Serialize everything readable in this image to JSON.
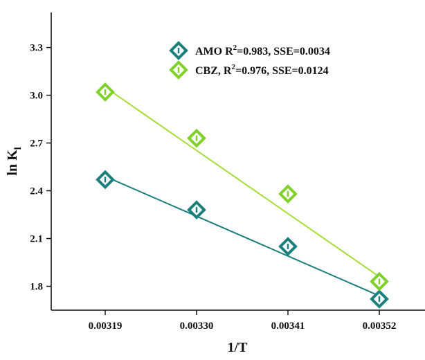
{
  "chart_data": {
    "type": "scatter",
    "xlabel": "1/T",
    "ylabel": {
      "main": "ln K",
      "sub": "l"
    },
    "xlim": [
      0.003125,
      0.003575
    ],
    "ylim": [
      1.65,
      3.52
    ],
    "x_ticks": [
      0.00319,
      0.0033,
      0.00341,
      0.00352
    ],
    "x_tick_labels": [
      "0.00319",
      "0.00330",
      "0.00341",
      "0.00352"
    ],
    "y_ticks": [
      1.8,
      2.1,
      2.4,
      2.7,
      3.0,
      3.3
    ],
    "y_tick_labels": [
      "1.8",
      "2.1",
      "2.4",
      "2.7",
      "3.0",
      "3.3"
    ],
    "grid": false,
    "legend_position": "top-right",
    "series": [
      {
        "name": "AMO",
        "legend_label": {
          "name": "AMO",
          "r2_prefix": "R",
          "r2_sup": "2",
          "rest": "=0.983, SSE=0.0034"
        },
        "color": "#1b7f7c",
        "marker": "diamond",
        "x": [
          0.00319,
          0.0033,
          0.00341,
          0.00352
        ],
        "y": [
          2.47,
          2.28,
          2.05,
          1.72
        ],
        "fit": {
          "x": [
            0.00319,
            0.00352
          ],
          "y": [
            2.49,
            1.74
          ]
        }
      },
      {
        "name": "CBZ",
        "legend_label": {
          "name": "CBZ,",
          "r2_prefix": "R",
          "r2_sup": "2",
          "rest": "=0.976, SSE=0.0124"
        },
        "color": "#7fd12a",
        "line_color": "#a6dc3a",
        "marker": "diamond",
        "x": [
          0.00319,
          0.0033,
          0.00341,
          0.00352
        ],
        "y": [
          3.02,
          2.73,
          2.38,
          1.83
        ],
        "fit": {
          "x": [
            0.00319,
            0.00352
          ],
          "y": [
            3.05,
            1.86
          ]
        }
      }
    ]
  }
}
